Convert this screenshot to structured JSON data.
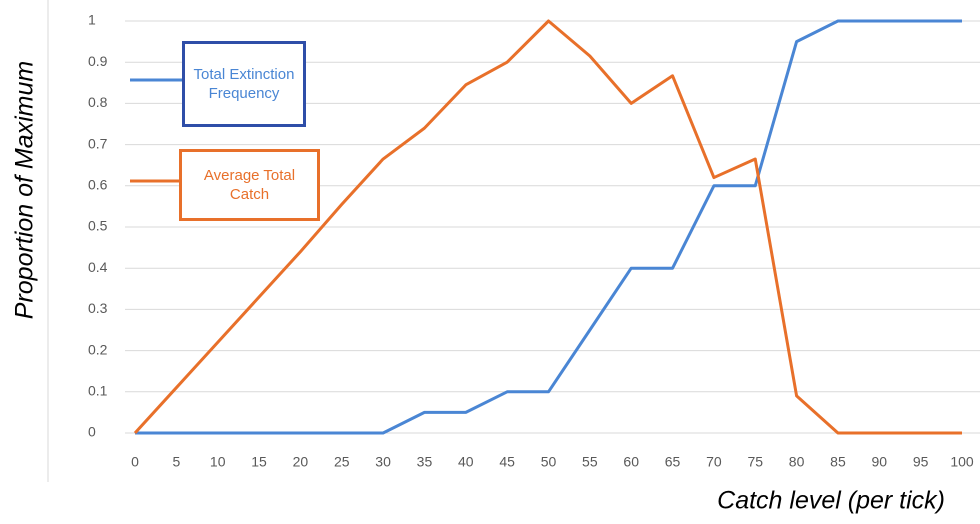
{
  "chart_data": {
    "type": "line",
    "y_label": "Proportion of Maximum",
    "x_label": "Catch level (per tick)",
    "x": [
      0,
      5,
      10,
      15,
      20,
      25,
      30,
      35,
      40,
      45,
      50,
      55,
      60,
      65,
      70,
      75,
      80,
      85,
      90,
      95,
      100
    ],
    "series": [
      {
        "name": "Total Extinction Frequency",
        "color": "#4a86d4",
        "values": [
          0,
          0,
          0,
          0,
          0,
          0,
          0,
          0.05,
          0.05,
          0.1,
          0.1,
          0.25,
          0.4,
          0.4,
          0.6,
          0.6,
          0.95,
          1,
          1,
          1,
          1
        ]
      },
      {
        "name": "Average Total Catch",
        "color": "#e8702a",
        "values": [
          0,
          0.11,
          0.22,
          0.33,
          0.44,
          0.555,
          0.665,
          0.74,
          0.845,
          0.9,
          1,
          0.915,
          0.8,
          0.867,
          0.62,
          0.665,
          0.09,
          0,
          0,
          0,
          0
        ]
      }
    ],
    "xlim": [
      0,
      100
    ],
    "xticks": [
      0,
      5,
      10,
      15,
      20,
      25,
      30,
      35,
      40,
      45,
      50,
      55,
      60,
      65,
      70,
      75,
      80,
      85,
      90,
      95,
      100
    ],
    "ylim": [
      0,
      1
    ],
    "yticks": [
      0,
      0.1,
      0.2,
      0.3,
      0.4,
      0.5,
      0.6,
      0.7,
      0.8,
      0.9,
      1
    ],
    "grid": true
  }
}
